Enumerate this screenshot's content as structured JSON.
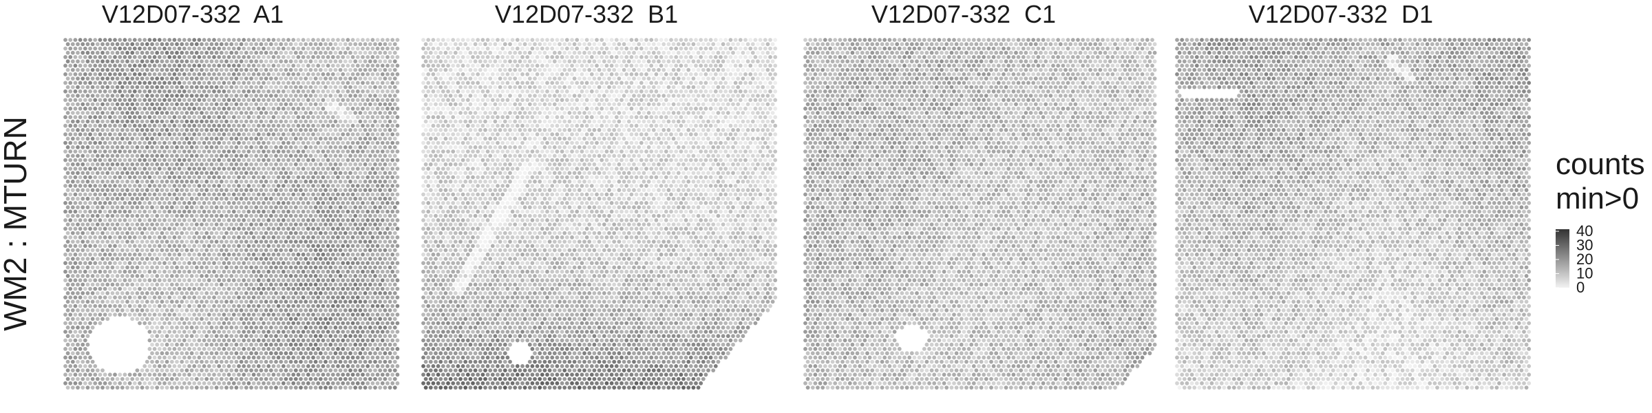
{
  "chart_data": {
    "type": "heatmap",
    "subtype": "spatial-spot-map",
    "row_label": "WM2 : MTURN",
    "panels": [
      {
        "title": "V12D07-332  A1",
        "density": "high",
        "level": 9,
        "holes": [
          {
            "cx": 0.16,
            "cy": 0.86,
            "rx": 0.09,
            "ry": 0.08
          }
        ],
        "cutouts": [
          {
            "edge": "left",
            "from": 0.0,
            "to": 0.0
          }
        ],
        "streak": {
          "x1": 0.78,
          "y1": 0.18,
          "x2": 0.85,
          "y2": 0.22
        }
      },
      {
        "title": "V12D07-332  B1",
        "density": "gradient-bottom",
        "level": 6,
        "holes": [
          {
            "cx": 0.27,
            "cy": 0.88,
            "rx": 0.035,
            "ry": 0.03
          }
        ],
        "cutouts": [
          {
            "edge": "right-bottom",
            "from": 0.72,
            "to": 1.0
          }
        ],
        "streak": {
          "x1": 0.1,
          "y1": 0.7,
          "x2": 0.3,
          "y2": 0.35
        }
      },
      {
        "title": "V12D07-332  C1",
        "density": "medium",
        "level": 8,
        "holes": [
          {
            "cx": 0.3,
            "cy": 0.84,
            "rx": 0.045,
            "ry": 0.04
          }
        ],
        "cutouts": [
          {
            "edge": "right-bottom",
            "from": 0.85,
            "to": 1.0
          }
        ],
        "streak": {
          "x1": 0.0,
          "y1": 0.0,
          "x2": 0.0,
          "y2": 0.0
        }
      },
      {
        "title": "V12D07-332  D1",
        "density": "top-heavy",
        "level": 7,
        "holes": [
          {
            "cx": 0.09,
            "cy": 0.15,
            "rx": 0.09,
            "ry": 0.015
          }
        ],
        "cutouts": [
          {
            "edge": "top",
            "from": 0.0,
            "to": 0.07
          }
        ],
        "streak": {
          "x1": 0.6,
          "y1": 0.06,
          "x2": 0.65,
          "y2": 0.1
        }
      }
    ],
    "legend": {
      "title_line1": "counts",
      "title_line2": "min>0",
      "ticks": [
        "40",
        "30",
        "20",
        "10",
        "0"
      ],
      "range": [
        0,
        40
      ],
      "color_low": "#f2f2f2",
      "color_high": "#333333"
    }
  }
}
